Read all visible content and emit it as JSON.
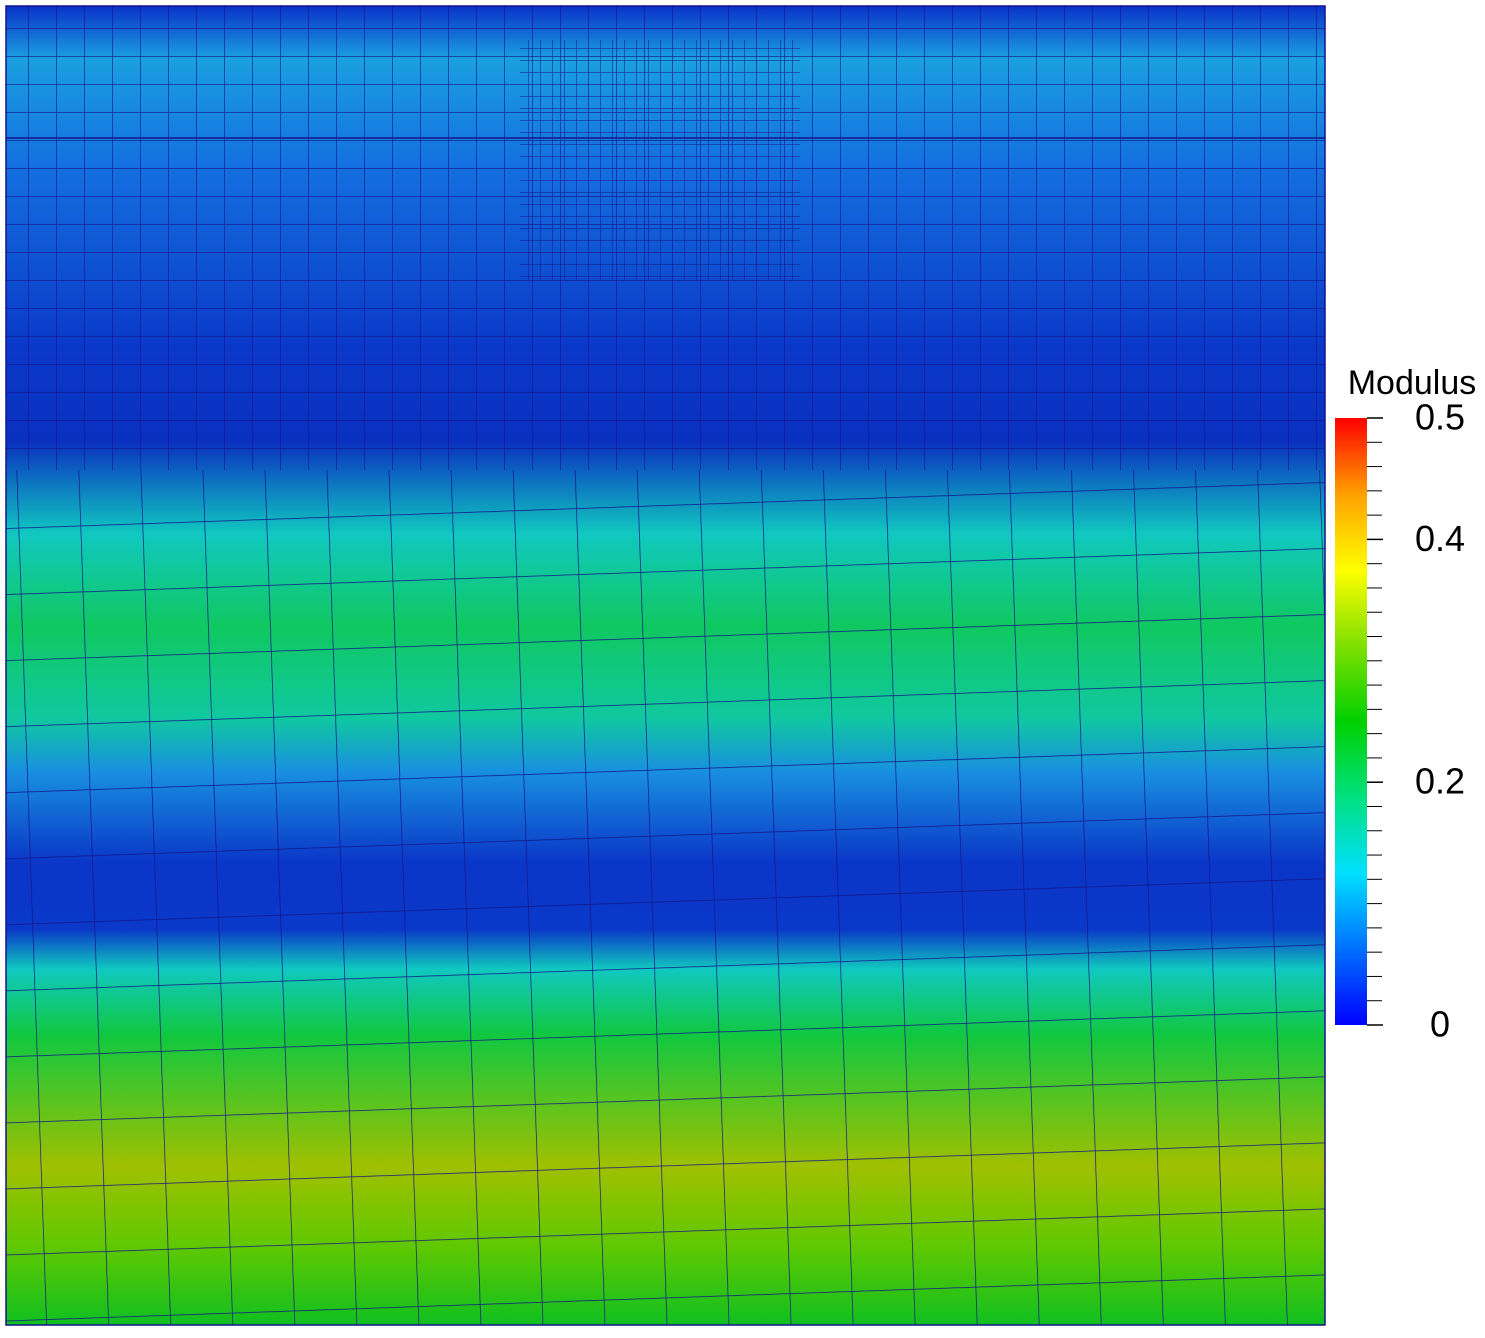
{
  "chart_data": {
    "type": "colorbar-field",
    "colorbar_title": "Modulus",
    "ylim": [
      0,
      0.5
    ],
    "yticks": [
      0,
      0.2,
      0.4,
      0.5
    ],
    "minor_yticks": [
      0.02,
      0.04,
      0.06,
      0.08,
      0.1,
      0.12,
      0.14,
      0.16,
      0.18,
      0.22,
      0.24,
      0.26,
      0.28,
      0.3,
      0.32,
      0.34,
      0.36,
      0.38,
      0.42,
      0.44,
      0.46,
      0.48
    ],
    "colormap": [
      "#0000ff",
      "#0070ff",
      "#00e0ff",
      "#00e080",
      "#00d000",
      "#80e000",
      "#ffff00",
      "#ffa000",
      "#ff0000"
    ]
  }
}
